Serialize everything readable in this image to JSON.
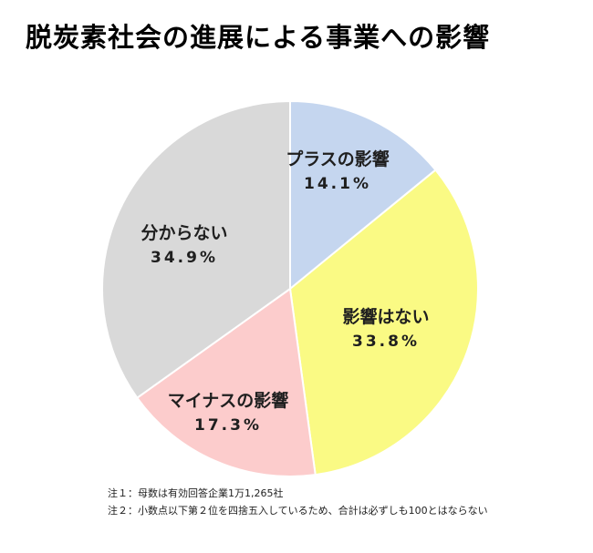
{
  "title": "脱炭素社会の進展による事業への影響",
  "chart_data": {
    "type": "pie",
    "title": "脱炭素社会の進展による事業への影響",
    "unit": "%",
    "start": "12 o'clock",
    "direction": "clockwise",
    "slices": [
      {
        "label": "プラスの影響",
        "value": 14.1,
        "value_text": "14.1",
        "color": "#c5d6ef"
      },
      {
        "label": "影響はない",
        "value": 33.8,
        "value_text": "33.8",
        "color": "#fafa84"
      },
      {
        "label": "マイナスの影響",
        "value": 17.3,
        "value_text": "17.3",
        "color": "#fccccc"
      },
      {
        "label": "分からない",
        "value": 34.9,
        "value_text": "34.9",
        "color": "#d9d9d9"
      }
    ]
  },
  "notes": [
    "注１：母数は有効回答企業1万1,265社",
    "注２：小数点以下第２位を四捨五入しているため、合計は必ずしも100とはならない"
  ]
}
